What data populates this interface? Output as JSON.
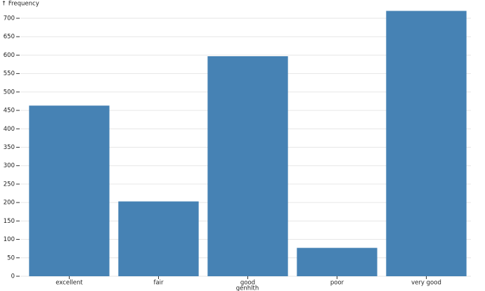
{
  "chart_data": {
    "type": "bar",
    "y_label": "↑ Frequency",
    "x_label": "genhlth",
    "categories": [
      "excellent",
      "fair",
      "good",
      "poor",
      "very good"
    ],
    "values": [
      463,
      203,
      597,
      77,
      720
    ],
    "color": "#4682b4",
    "ylim": [
      0,
      720
    ],
    "yticks": [
      0,
      50,
      100,
      150,
      200,
      250,
      300,
      350,
      400,
      450,
      500,
      550,
      600,
      650,
      700
    ],
    "grid": true
  }
}
